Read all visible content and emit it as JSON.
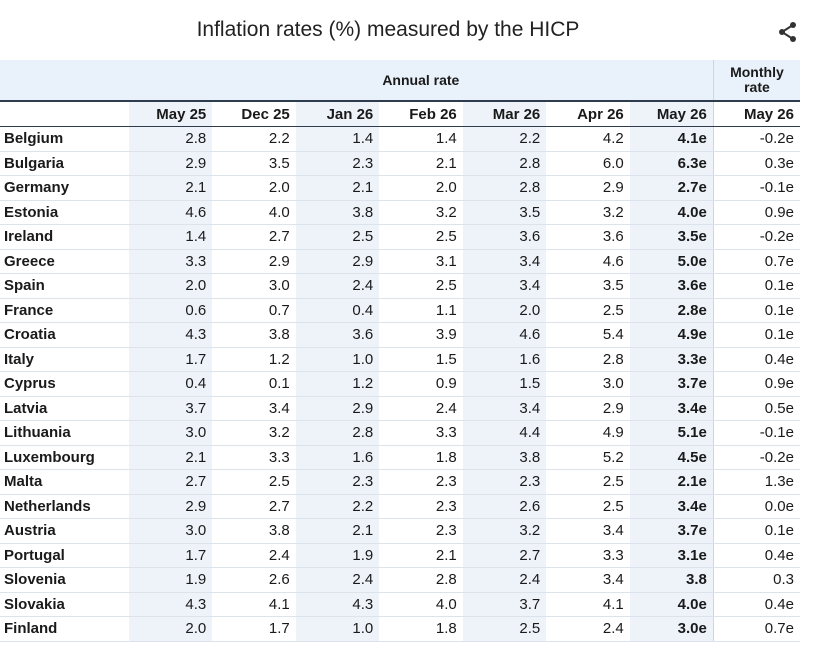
{
  "chart_data": {
    "type": "table",
    "title": "Inflation rates (%) measured by the HICP",
    "group_headers": {
      "annual": "Annual rate",
      "monthly": "Monthly rate"
    },
    "columns": [
      "May 25",
      "Dec 25",
      "Jan 26",
      "Feb 26",
      "Mar 26",
      "Apr 26",
      "May 26",
      "May 26"
    ],
    "rows": [
      {
        "country": "Belgium",
        "values": [
          "2.8",
          "2.2",
          "1.4",
          "1.4",
          "2.2",
          "4.2",
          "4.1e",
          "-0.2e"
        ]
      },
      {
        "country": "Bulgaria",
        "values": [
          "2.9",
          "3.5",
          "2.3",
          "2.1",
          "2.8",
          "6.0",
          "6.3e",
          "0.3e"
        ]
      },
      {
        "country": "Germany",
        "values": [
          "2.1",
          "2.0",
          "2.1",
          "2.0",
          "2.8",
          "2.9",
          "2.7e",
          "-0.1e"
        ]
      },
      {
        "country": "Estonia",
        "values": [
          "4.6",
          "4.0",
          "3.8",
          "3.2",
          "3.5",
          "3.2",
          "4.0e",
          "0.9e"
        ]
      },
      {
        "country": "Ireland",
        "values": [
          "1.4",
          "2.7",
          "2.5",
          "2.5",
          "3.6",
          "3.6",
          "3.5e",
          "-0.2e"
        ]
      },
      {
        "country": "Greece",
        "values": [
          "3.3",
          "2.9",
          "2.9",
          "3.1",
          "3.4",
          "4.6",
          "5.0e",
          "0.7e"
        ]
      },
      {
        "country": "Spain",
        "values": [
          "2.0",
          "3.0",
          "2.4",
          "2.5",
          "3.4",
          "3.5",
          "3.6e",
          "0.1e"
        ]
      },
      {
        "country": "France",
        "values": [
          "0.6",
          "0.7",
          "0.4",
          "1.1",
          "2.0",
          "2.5",
          "2.8e",
          "0.1e"
        ]
      },
      {
        "country": "Croatia",
        "values": [
          "4.3",
          "3.8",
          "3.6",
          "3.9",
          "4.6",
          "5.4",
          "4.9e",
          "0.1e"
        ]
      },
      {
        "country": "Italy",
        "values": [
          "1.7",
          "1.2",
          "1.0",
          "1.5",
          "1.6",
          "2.8",
          "3.3e",
          "0.4e"
        ]
      },
      {
        "country": "Cyprus",
        "values": [
          "0.4",
          "0.1",
          "1.2",
          "0.9",
          "1.5",
          "3.0",
          "3.7e",
          "0.9e"
        ]
      },
      {
        "country": "Latvia",
        "values": [
          "3.7",
          "3.4",
          "2.9",
          "2.4",
          "3.4",
          "2.9",
          "3.4e",
          "0.5e"
        ]
      },
      {
        "country": "Lithuania",
        "values": [
          "3.0",
          "3.2",
          "2.8",
          "3.3",
          "4.4",
          "4.9",
          "5.1e",
          "-0.1e"
        ]
      },
      {
        "country": "Luxembourg",
        "values": [
          "2.1",
          "3.3",
          "1.6",
          "1.8",
          "3.8",
          "5.2",
          "4.5e",
          "-0.2e"
        ]
      },
      {
        "country": "Malta",
        "values": [
          "2.7",
          "2.5",
          "2.3",
          "2.3",
          "2.3",
          "2.5",
          "2.1e",
          "1.3e"
        ]
      },
      {
        "country": "Netherlands",
        "values": [
          "2.9",
          "2.7",
          "2.2",
          "2.3",
          "2.6",
          "2.5",
          "3.4e",
          "0.0e"
        ]
      },
      {
        "country": "Austria",
        "values": [
          "3.0",
          "3.8",
          "2.1",
          "2.3",
          "3.2",
          "3.4",
          "3.7e",
          "0.1e"
        ]
      },
      {
        "country": "Portugal",
        "values": [
          "1.7",
          "2.4",
          "1.9",
          "2.1",
          "2.7",
          "3.3",
          "3.1e",
          "0.4e"
        ]
      },
      {
        "country": "Slovenia",
        "values": [
          "1.9",
          "2.6",
          "2.4",
          "2.8",
          "2.4",
          "3.4",
          "3.8",
          "0.3"
        ]
      },
      {
        "country": "Slovakia",
        "values": [
          "4.3",
          "4.1",
          "4.3",
          "4.0",
          "3.7",
          "4.1",
          "4.0e",
          "0.4e"
        ]
      },
      {
        "country": "Finland",
        "values": [
          "2.0",
          "1.7",
          "1.0",
          "1.8",
          "2.5",
          "2.4",
          "3.0e",
          "0.7e"
        ]
      }
    ]
  },
  "icons": {
    "share": "share-icon"
  }
}
